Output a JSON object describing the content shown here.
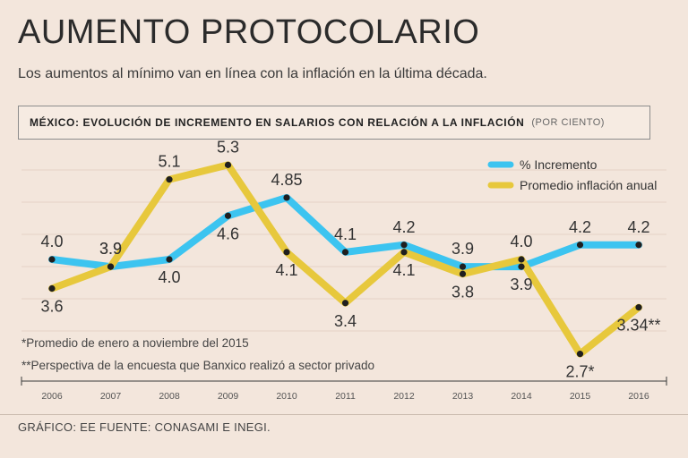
{
  "header": {
    "title": "AUMENTO PROTOCOLARIO",
    "subtitle": "Los aumentos al mínimo van en línea con la inflación en la última década."
  },
  "chart_header": {
    "title": "MÉXICO: EVOLUCIÓN DE INCREMENTO EN SALARIOS CON RELACIÓN A LA INFLACIÓN",
    "unit": "(POR CIENTO)"
  },
  "chart_data": {
    "type": "line",
    "categories": [
      "2006",
      "2007",
      "2008",
      "2009",
      "2010",
      "2011",
      "2012",
      "2013",
      "2014",
      "2015",
      "2016"
    ],
    "series": [
      {
        "name": "% Incremento",
        "color": "#3cc4f0",
        "values": [
          4.0,
          3.9,
          4.0,
          4.6,
          4.85,
          4.1,
          4.2,
          3.9,
          3.9,
          4.2,
          4.2
        ],
        "labels": [
          "4.0",
          "3.9",
          "4.0",
          "4.6",
          "4.85",
          "4.1",
          "4.2",
          "3.9",
          "3.9",
          "4.2",
          "4.2"
        ]
      },
      {
        "name": "Promedio inflación anual",
        "color": "#e7c83c",
        "values": [
          3.6,
          3.9,
          5.1,
          5.3,
          4.1,
          3.4,
          4.1,
          3.8,
          4.0,
          2.7,
          3.34
        ],
        "labels": [
          "3.6",
          "3.9",
          "5.1",
          "5.3",
          "4.1",
          "3.4",
          "4.1",
          "3.8",
          "4.0",
          "2.7*",
          "3.34**"
        ]
      }
    ],
    "ylim": [
      2.4,
      5.6
    ],
    "grid": true,
    "legend": "top-right",
    "notes": [
      "*Promedio de enero a noviembre del 2015",
      "**Perspectiva de la encuesta que Banxico realizó a sector privado"
    ]
  },
  "footer": {
    "credit": "GRÁFICO: EE  FUENTE: CONASAMI E INEGI."
  }
}
